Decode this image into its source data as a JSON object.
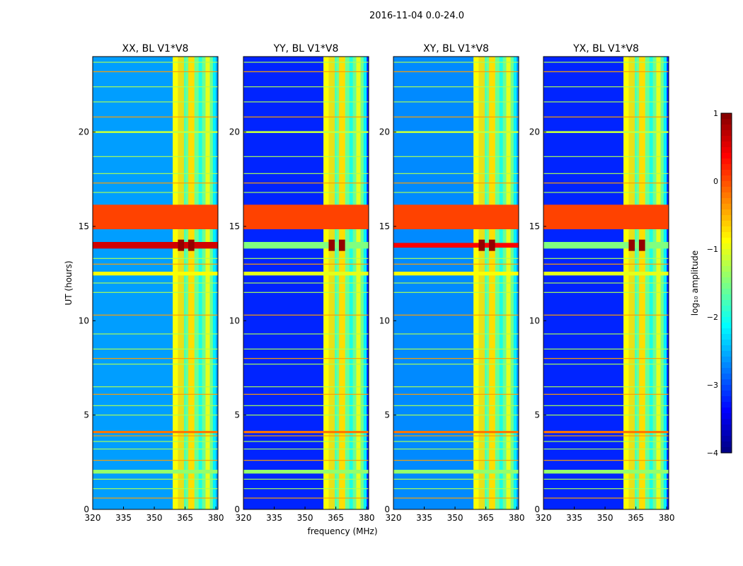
{
  "figure": {
    "suptitle": "2016-11-04 0.0-24.0",
    "xlabel": "frequency (MHz)",
    "ylabel": "UT (hours)",
    "colorbar_label": "log₁₀ amplitude"
  },
  "chart_data": [
    {
      "type": "heatmap",
      "title": "XX, BL V1*V8",
      "xlabel": "frequency (MHz)",
      "ylabel": "UT (hours)",
      "xlim": [
        320,
        381
      ],
      "ylim": [
        0,
        24
      ],
      "xticks": [
        320,
        335,
        350,
        365,
        380
      ],
      "yticks": [
        0,
        5,
        10,
        15,
        20
      ],
      "background_level": -2.6,
      "rfi_band_MHz": [
        359,
        380
      ],
      "strong_channels_MHz": [
        [
          361.5,
          364.5
        ],
        [
          366.5,
          369.5
        ]
      ],
      "broadband_rfi_hours": [
        {
          "t": 15.5,
          "width": 1.3,
          "level": 0.05
        },
        {
          "t": 14.0,
          "width": 0.35,
          "level": 0.6
        },
        {
          "t": 12.5,
          "width": 0.2,
          "level": -0.9
        },
        {
          "t": 4.1,
          "width": 0.12,
          "level": -0.2
        },
        {
          "t": 20.0,
          "width": 0.1,
          "level": -1.2
        },
        {
          "t": 2.0,
          "width": 0.2,
          "level": -1.4
        }
      ]
    },
    {
      "type": "heatmap",
      "title": "YY, BL V1*V8",
      "xlabel": "frequency (MHz)",
      "ylabel": "UT (hours)",
      "xlim": [
        320,
        381
      ],
      "ylim": [
        0,
        24
      ],
      "xticks": [
        320,
        335,
        350,
        365,
        380
      ],
      "yticks": [
        0,
        5,
        10,
        15,
        20
      ],
      "background_level": -3.2,
      "rfi_band_MHz": [
        359,
        380
      ],
      "strong_channels_MHz": [
        [
          361.5,
          364.5
        ],
        [
          366.5,
          369.5
        ]
      ],
      "broadband_rfi_hours": [
        {
          "t": 15.5,
          "width": 1.3,
          "level": 0.05
        },
        {
          "t": 14.0,
          "width": 0.35,
          "level": -1.5
        },
        {
          "t": 12.5,
          "width": 0.2,
          "level": -1.0
        },
        {
          "t": 4.1,
          "width": 0.12,
          "level": -0.2
        },
        {
          "t": 20.0,
          "width": 0.1,
          "level": -1.2
        },
        {
          "t": 2.0,
          "width": 0.2,
          "level": -1.4
        }
      ]
    },
    {
      "type": "heatmap",
      "title": "XY, BL V1*V8",
      "xlabel": "frequency (MHz)",
      "ylabel": "UT (hours)",
      "xlim": [
        320,
        381
      ],
      "ylim": [
        0,
        24
      ],
      "xticks": [
        320,
        335,
        350,
        365,
        380
      ],
      "yticks": [
        0,
        5,
        10,
        15,
        20
      ],
      "background_level": -2.7,
      "rfi_band_MHz": [
        359,
        380
      ],
      "strong_channels_MHz": [
        [
          361.5,
          364.5
        ],
        [
          366.5,
          369.5
        ]
      ],
      "broadband_rfi_hours": [
        {
          "t": 15.5,
          "width": 1.3,
          "level": 0.05
        },
        {
          "t": 14.0,
          "width": 0.25,
          "level": 0.4
        },
        {
          "t": 12.5,
          "width": 0.2,
          "level": -0.9
        },
        {
          "t": 4.1,
          "width": 0.12,
          "level": -0.2
        },
        {
          "t": 20.0,
          "width": 0.1,
          "level": -1.2
        },
        {
          "t": 2.0,
          "width": 0.2,
          "level": -1.4
        }
      ]
    },
    {
      "type": "heatmap",
      "title": "YX, BL V1*V8",
      "xlabel": "frequency (MHz)",
      "ylabel": "UT (hours)",
      "xlim": [
        320,
        381
      ],
      "ylim": [
        0,
        24
      ],
      "xticks": [
        320,
        335,
        350,
        365,
        380
      ],
      "yticks": [
        0,
        5,
        10,
        15,
        20
      ],
      "background_level": -3.2,
      "rfi_band_MHz": [
        359,
        380
      ],
      "strong_channels_MHz": [
        [
          361.5,
          364.5
        ],
        [
          366.5,
          369.5
        ]
      ],
      "broadband_rfi_hours": [
        {
          "t": 15.5,
          "width": 1.3,
          "level": 0.05
        },
        {
          "t": 14.0,
          "width": 0.35,
          "level": -1.5
        },
        {
          "t": 12.5,
          "width": 0.2,
          "level": -1.0
        },
        {
          "t": 4.1,
          "width": 0.12,
          "level": -0.2
        },
        {
          "t": 20.0,
          "width": 0.1,
          "level": -1.2
        },
        {
          "t": 2.0,
          "width": 0.2,
          "level": -1.4
        }
      ]
    }
  ],
  "colorbar": {
    "cmap": "jet",
    "range": [
      -4,
      1
    ],
    "ticks": [
      1,
      0,
      -1,
      -2,
      -3,
      -4
    ],
    "tick_labels": [
      "1",
      "0",
      "−1",
      "−2",
      "−3",
      "−4"
    ]
  }
}
